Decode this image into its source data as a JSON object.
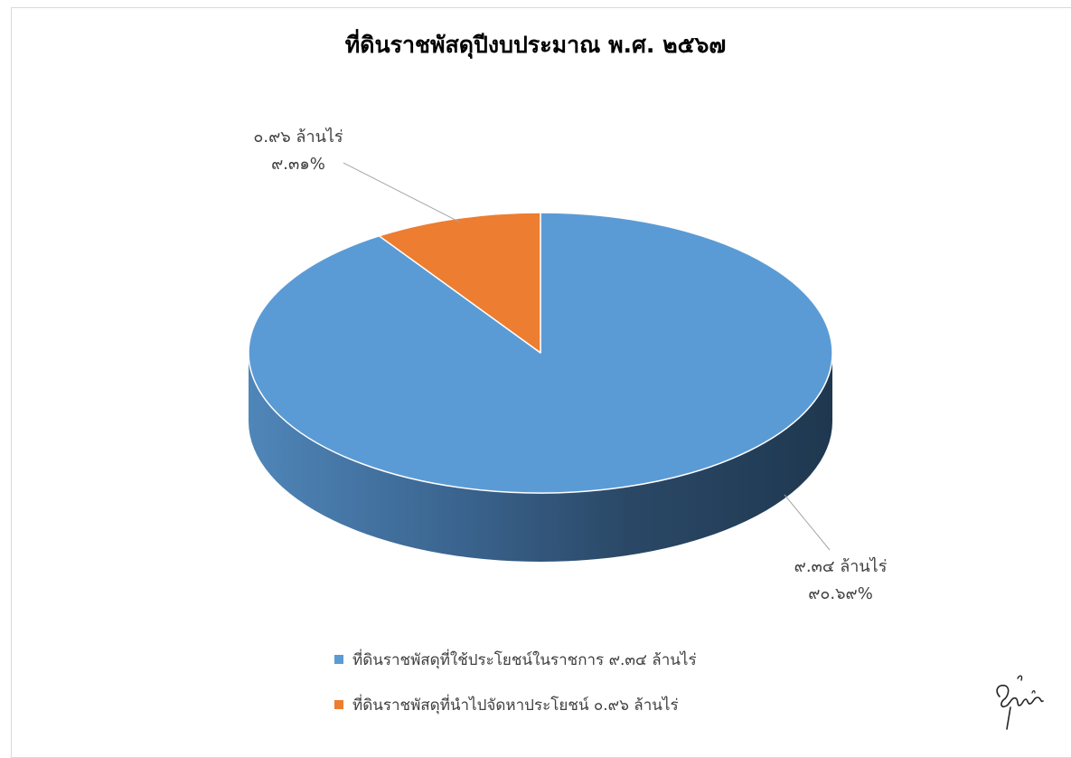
{
  "chart_data": {
    "type": "pie",
    "style": "3d",
    "title": "ที่ดินราชพัสดุปีงบประมาณ พ.ศ. ๒๕๖๗",
    "categories": [
      "ที่ดินราชพัสดุที่ใช้ประโยชน์ในราชการ ๙.๓๔ ล้านไร่",
      "ที่ดินราชพัสดุที่นำไปจัดหาประโยชน์ ๐.๙๖ ล้านไร่"
    ],
    "values": [
      9.34,
      0.96
    ],
    "percentages": [
      90.69,
      9.31
    ],
    "colors": [
      "#5b9bd5",
      "#ed7d31"
    ],
    "data_labels": [
      {
        "amount": "๙.๓๔ ล้านไร่",
        "percent": "๙๐.๖๙%"
      },
      {
        "amount": "๐.๙๖ ล้านไร่",
        "percent": "๙.๓๑%"
      }
    ],
    "unit": "ล้านไร่",
    "legend_position": "bottom",
    "start_angle_deg": 0,
    "direction": "clockwise"
  },
  "legend": {
    "items": [
      {
        "label": "ที่ดินราชพัสดุที่ใช้ประโยชน์ในราชการ ๙.๓๔ ล้านไร่",
        "color": "#5b9bd5"
      },
      {
        "label": "ที่ดินราชพัสดุที่นำไปจัดหาประโยชน์ ๐.๙๖ ล้านไร่",
        "color": "#ed7d31"
      }
    ]
  },
  "colors": {
    "frame_border": "#d9d9d9",
    "label_text": "#404040",
    "leader_line": "#a6a6a6",
    "side_dark": "#1f3850"
  }
}
